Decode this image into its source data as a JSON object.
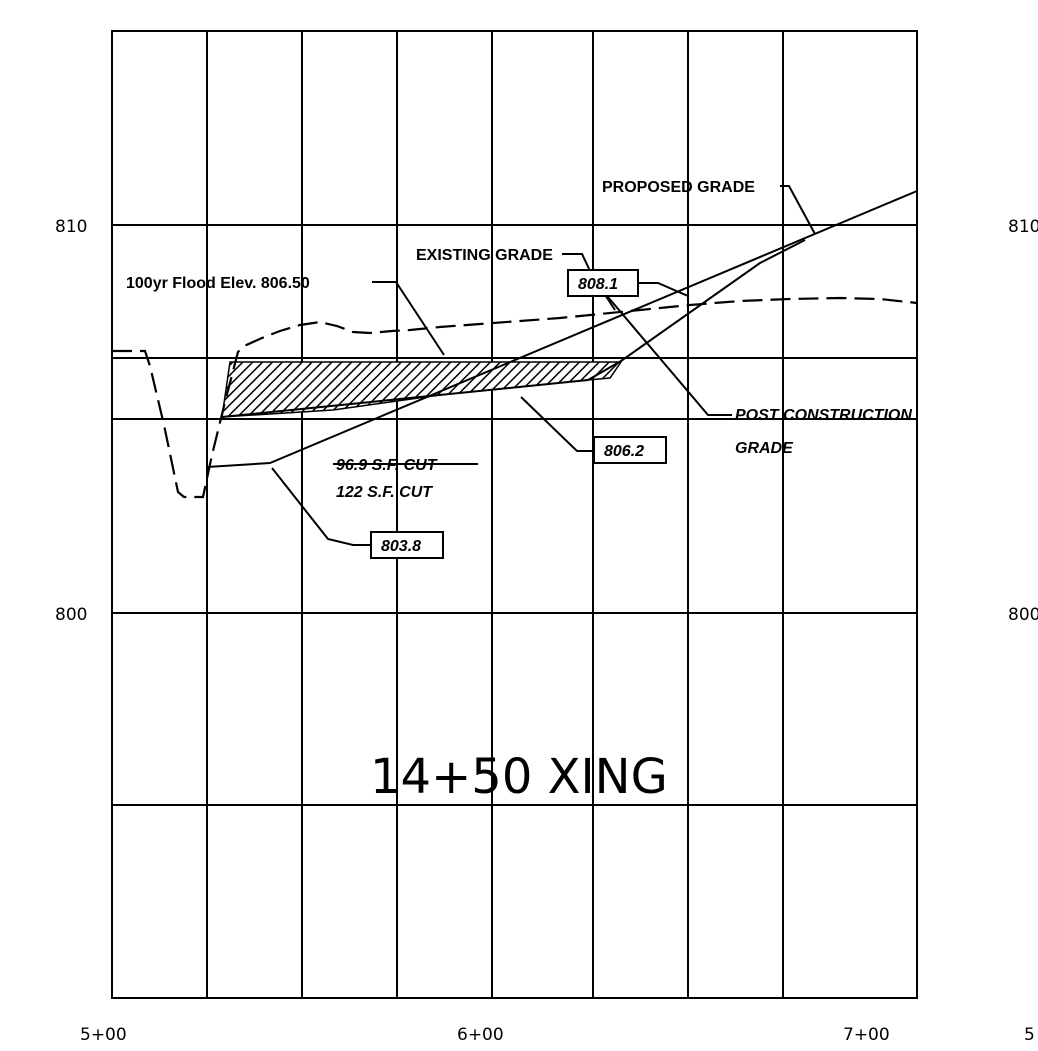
{
  "title": "14+50 XING",
  "axes": {
    "y_ticks": [
      "810",
      "800"
    ],
    "x_ticks": [
      "5+00",
      "6+00",
      "7+00"
    ],
    "right_y_ticks": [
      "810",
      "800"
    ],
    "right_x_tick": "5"
  },
  "annotations": {
    "proposed_grade": "PROPOSED GRADE",
    "existing_grade": "EXISTING GRADE",
    "flood": "100yr Flood Elev. 806.50",
    "post_construction_line1": "POST CONSTRUCTION",
    "post_construction_line2": "GRADE",
    "cut_old": "96.9 S.F. CUT",
    "cut_new": "122 S.F. CUT",
    "box_808": "808.1",
    "box_806": "806.2",
    "box_803": "803.8"
  }
}
